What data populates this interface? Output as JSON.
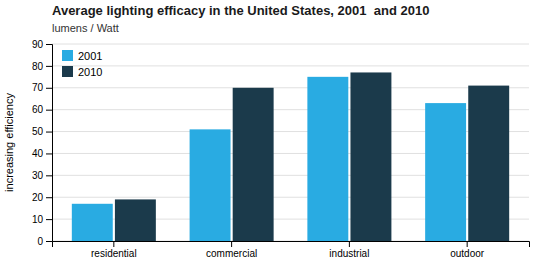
{
  "chart_data": {
    "type": "bar",
    "title": "Average lighting efficacy in the United States, 2001  and 2010",
    "subtitle": "lumens / Watt",
    "ylabel": "increasing efficiency",
    "categories": [
      "residential",
      "commercial",
      "industrial",
      "outdoor"
    ],
    "series": [
      {
        "name": "2001",
        "color": "#29ABE2",
        "values": [
          17,
          51,
          75,
          63
        ]
      },
      {
        "name": "2010",
        "color": "#1B3A4B",
        "values": [
          19,
          70,
          77,
          71
        ]
      }
    ],
    "ylim": [
      0,
      90
    ],
    "yticks": [
      0,
      10,
      20,
      30,
      40,
      50,
      60,
      70,
      80,
      90
    ],
    "grid": true,
    "legend": "upper left"
  }
}
